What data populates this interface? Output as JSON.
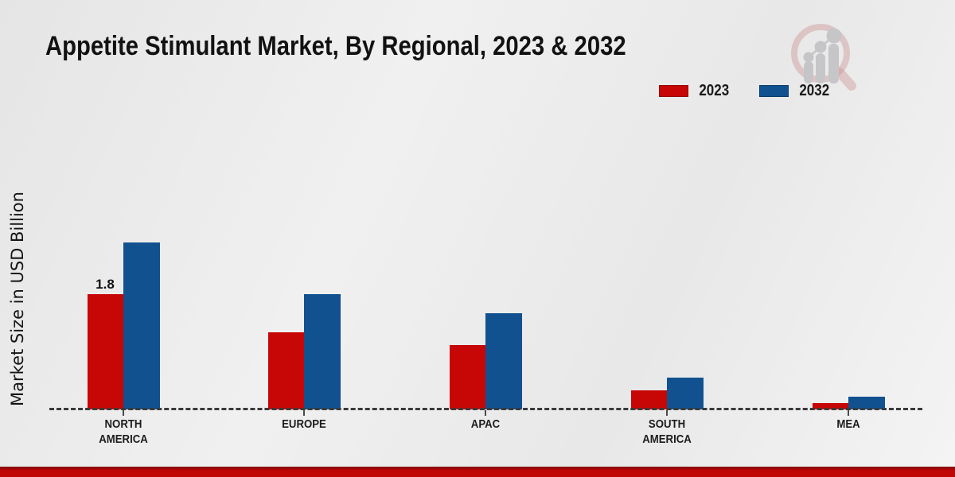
{
  "title": "Appetite Stimulant Market, By Regional, 2023 & 2032",
  "y_axis_label": "Market Size in USD Billion",
  "legend": {
    "items": [
      {
        "label": "2023",
        "color": "#c70606"
      },
      {
        "label": "2032",
        "color": "#11518f"
      }
    ]
  },
  "footer": {
    "accent_color": "#c10606",
    "accent_dark": "#7e0505"
  },
  "watermark": {
    "icon": "magnifier-growth-chart-logo",
    "ring_color": "#b65555",
    "bars_color": "#a9a9ae"
  },
  "chart_data": {
    "type": "bar",
    "title": "Appetite Stimulant Market, By Regional, 2023 & 2032",
    "categories": [
      "NORTH AMERICA",
      "EUROPE",
      "APAC",
      "SOUTH AMERICA",
      "MEA"
    ],
    "series": [
      {
        "name": "2023",
        "color": "#c70606",
        "values": [
          1.8,
          1.2,
          1.0,
          0.3,
          0.1
        ]
      },
      {
        "name": "2032",
        "color": "#11518f",
        "values": [
          2.6,
          1.8,
          1.5,
          0.5,
          0.2
        ]
      }
    ],
    "data_labels": [
      {
        "series_index": 0,
        "category_index": 0,
        "text": "1.8"
      }
    ],
    "xlabel": "",
    "ylabel": "Market Size in USD Billion",
    "ylim": [
      0,
      3.2
    ],
    "grid": false,
    "axis_style": "dashed-baseline-only",
    "legend_position": "top-right"
  }
}
